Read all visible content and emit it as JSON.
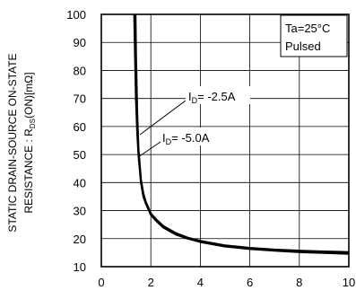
{
  "chart_data": {
    "type": "line",
    "title": "",
    "ylabel_line1": "STATIC DRAIN-SOURCE ON-STATE",
    "ylabel_line2_prefix": "RESISTANCE : R",
    "ylabel_line2_sub": "DS",
    "ylabel_line2_suffix": "(ON)[mΩ]",
    "xlabel": "",
    "xlim": [
      0,
      10
    ],
    "ylim": [
      10,
      100
    ],
    "x_ticks": [
      0,
      2,
      4,
      6,
      8,
      10
    ],
    "y_ticks": [
      10,
      20,
      30,
      40,
      50,
      60,
      70,
      80,
      90,
      100
    ],
    "grid": true,
    "legend_box": {
      "line1": "Ta=25°C",
      "line2": "Pulsed",
      "placement": "top-right"
    },
    "series": [
      {
        "name_prefix": "I",
        "name_sub": "D",
        "name_value": "= -2.5A",
        "x": [
          1.38,
          1.4,
          1.45,
          1.5,
          1.6,
          1.7,
          1.8,
          2.0,
          2.2,
          2.5,
          3.0,
          3.5,
          4.0,
          5.0,
          6.0,
          7.0,
          8.0,
          9.0,
          10.0
        ],
        "y": [
          100,
          86,
          65,
          52,
          41,
          36,
          33,
          29,
          27,
          24.5,
          22,
          20.3,
          19.2,
          17.6,
          16.7,
          16.1,
          15.7,
          15.4,
          15.2
        ]
      },
      {
        "name_prefix": "I",
        "name_sub": "D",
        "name_value": "= -5.0A",
        "x": [
          1.33,
          1.35,
          1.4,
          1.45,
          1.5,
          1.6,
          1.7,
          1.8,
          2.0,
          2.2,
          2.5,
          3.0,
          3.5,
          4.0,
          5.0,
          6.0,
          7.0,
          8.0,
          9.0,
          10.0
        ],
        "y": [
          100,
          90,
          70,
          58,
          50,
          40,
          35,
          32.5,
          28.5,
          26.5,
          24,
          21.5,
          20,
          18.8,
          17.2,
          16.3,
          15.7,
          15.2,
          14.9,
          14.6
        ]
      }
    ]
  }
}
